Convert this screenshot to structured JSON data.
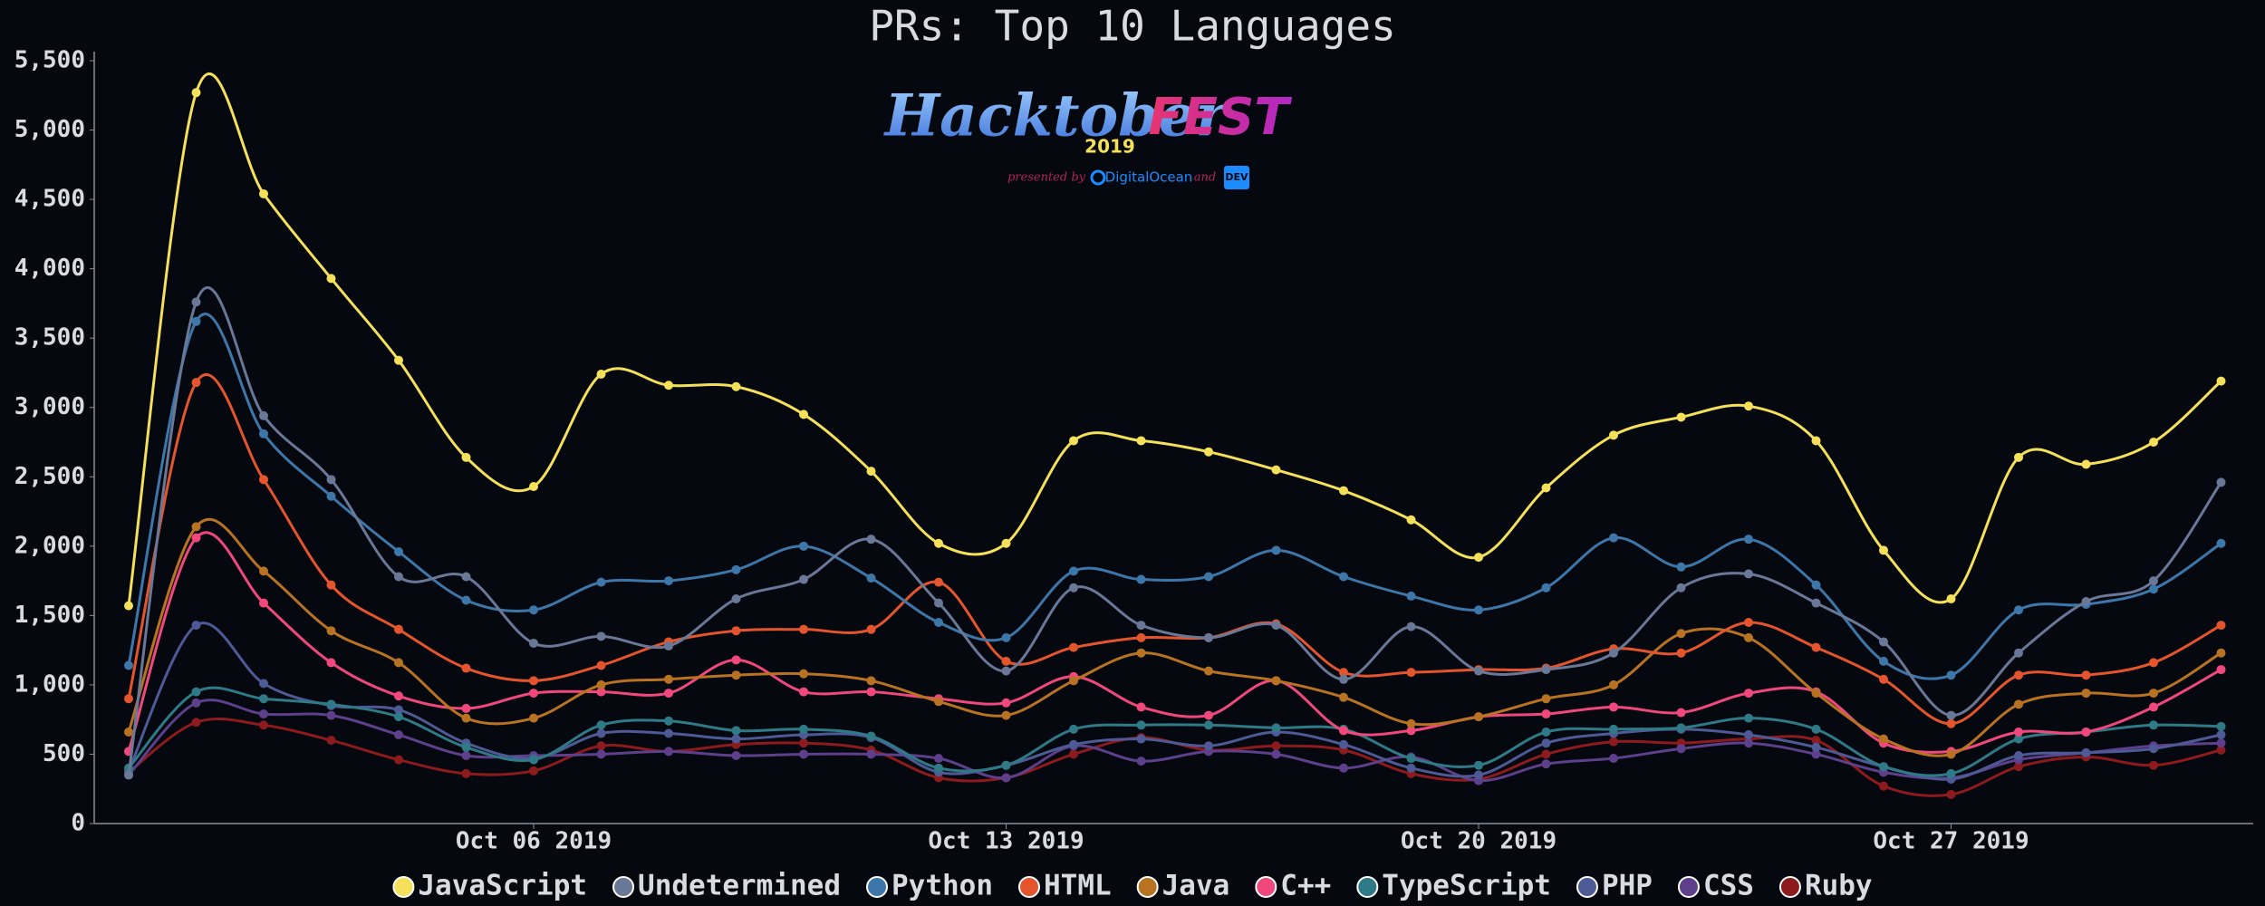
{
  "chart_data": {
    "type": "line",
    "title": "PRs: Top 10 Languages",
    "logo": {
      "word1": "Hacktober",
      "word2": "FEST",
      "year": "2019",
      "presented": "presented by",
      "sponsor1": "DigitalOcean",
      "and": "and",
      "sponsor2": "DEV"
    },
    "x": [
      "2019-09-30",
      "2019-10-01",
      "2019-10-02",
      "2019-10-03",
      "2019-10-04",
      "2019-10-05",
      "2019-10-06",
      "2019-10-07",
      "2019-10-08",
      "2019-10-09",
      "2019-10-10",
      "2019-10-11",
      "2019-10-12",
      "2019-10-13",
      "2019-10-14",
      "2019-10-15",
      "2019-10-16",
      "2019-10-17",
      "2019-10-18",
      "2019-10-19",
      "2019-10-20",
      "2019-10-21",
      "2019-10-22",
      "2019-10-23",
      "2019-10-24",
      "2019-10-25",
      "2019-10-26",
      "2019-10-27",
      "2019-10-28",
      "2019-10-29",
      "2019-10-30",
      "2019-10-31"
    ],
    "xticks": [
      {
        "value": "2019-10-06",
        "label": "Oct 06 2019"
      },
      {
        "value": "2019-10-13",
        "label": "Oct 13 2019"
      },
      {
        "value": "2019-10-20",
        "label": "Oct 20 2019"
      },
      {
        "value": "2019-10-27",
        "label": "Oct 27 2019"
      }
    ],
    "ylim": [
      0,
      5500
    ],
    "yticks": [
      0,
      {
        "value": 500,
        "label": "500"
      },
      {
        "value": 1000,
        "label": "1,000"
      },
      {
        "value": 1500,
        "label": "1,500"
      },
      {
        "value": 2000,
        "label": "2,000"
      },
      {
        "value": 2500,
        "label": "2,500"
      },
      {
        "value": 3000,
        "label": "3,000"
      },
      {
        "value": 3500,
        "label": "3,500"
      },
      {
        "value": 4000,
        "label": "4,000"
      },
      {
        "value": 4500,
        "label": "4,500"
      },
      {
        "value": 5000,
        "label": "5,000"
      },
      {
        "value": 5500,
        "label": "5,500"
      }
    ],
    "grid": false,
    "legend": "bottom",
    "series": [
      {
        "name": "JavaScript",
        "color": "#f5e05a",
        "values": [
          1570,
          5270,
          4540,
          3930,
          3340,
          2640,
          2430,
          3240,
          3160,
          3150,
          2950,
          2540,
          2020,
          2020,
          2760,
          2760,
          2680,
          2550,
          2400,
          2190,
          1920,
          2420,
          2800,
          2930,
          3010,
          2760,
          1970,
          1620,
          2640,
          2590,
          2750,
          3190
        ]
      },
      {
        "name": "Undetermined",
        "color": "#6a7897",
        "values": [
          350,
          3760,
          2940,
          2480,
          1780,
          1780,
          1300,
          1350,
          1280,
          1620,
          1760,
          2050,
          1590,
          1100,
          1700,
          1430,
          1340,
          1430,
          1040,
          1420,
          1100,
          1110,
          1230,
          1700,
          1800,
          1590,
          1310,
          780,
          1230,
          1600,
          1750,
          2460
        ]
      },
      {
        "name": "Python",
        "color": "#3d77aa",
        "values": [
          1140,
          3620,
          2810,
          2360,
          1960,
          1610,
          1540,
          1740,
          1750,
          1830,
          2000,
          1770,
          1450,
          1340,
          1820,
          1760,
          1780,
          1970,
          1780,
          1640,
          1540,
          1700,
          2060,
          1850,
          2050,
          1720,
          1170,
          1070,
          1540,
          1580,
          1690,
          2020
        ]
      },
      {
        "name": "HTML",
        "color": "#e4552d",
        "values": [
          900,
          3180,
          2480,
          1720,
          1400,
          1120,
          1030,
          1140,
          1310,
          1390,
          1400,
          1400,
          1740,
          1170,
          1270,
          1340,
          1340,
          1440,
          1090,
          1090,
          1110,
          1120,
          1260,
          1230,
          1450,
          1270,
          1040,
          720,
          1070,
          1070,
          1160,
          1430
        ]
      },
      {
        "name": "Java",
        "color": "#b87322",
        "values": [
          660,
          2140,
          1820,
          1390,
          1160,
          760,
          760,
          1000,
          1040,
          1070,
          1080,
          1030,
          880,
          780,
          1030,
          1230,
          1100,
          1030,
          910,
          720,
          770,
          900,
          1000,
          1370,
          1340,
          940,
          610,
          500,
          860,
          940,
          940,
          1230
        ]
      },
      {
        "name": "C++",
        "color": "#f0487d",
        "values": [
          520,
          2060,
          1590,
          1160,
          920,
          830,
          940,
          950,
          940,
          1180,
          950,
          950,
          900,
          870,
          1060,
          840,
          780,
          1030,
          670,
          670,
          770,
          790,
          840,
          800,
          940,
          950,
          580,
          520,
          660,
          660,
          840,
          1110
        ]
      },
      {
        "name": "TypeScript",
        "color": "#2e7a86",
        "values": [
          400,
          950,
          900,
          860,
          770,
          550,
          460,
          710,
          740,
          670,
          680,
          630,
          400,
          420,
          680,
          710,
          710,
          690,
          680,
          470,
          420,
          660,
          680,
          690,
          760,
          680,
          410,
          360,
          610,
          660,
          710,
          700
        ]
      },
      {
        "name": "PHP",
        "color": "#4d5a95",
        "values": [
          380,
          1430,
          1010,
          850,
          820,
          580,
          470,
          650,
          650,
          610,
          640,
          620,
          370,
          420,
          570,
          610,
          560,
          660,
          570,
          400,
          350,
          580,
          650,
          680,
          640,
          550,
          410,
          320,
          490,
          510,
          540,
          640
        ]
      },
      {
        "name": "CSS",
        "color": "#5e3f8b",
        "values": [
          350,
          870,
          790,
          780,
          640,
          490,
          490,
          500,
          520,
          490,
          500,
          500,
          470,
          330,
          560,
          450,
          520,
          500,
          400,
          480,
          310,
          430,
          470,
          540,
          580,
          500,
          370,
          330,
          460,
          510,
          560,
          580
        ]
      },
      {
        "name": "Ruby",
        "color": "#8d1b1d",
        "values": [
          370,
          730,
          710,
          600,
          460,
          360,
          380,
          560,
          520,
          570,
          580,
          530,
          330,
          330,
          500,
          620,
          530,
          560,
          530,
          360,
          320,
          500,
          590,
          580,
          610,
          600,
          270,
          210,
          410,
          480,
          420,
          530
        ]
      }
    ]
  }
}
